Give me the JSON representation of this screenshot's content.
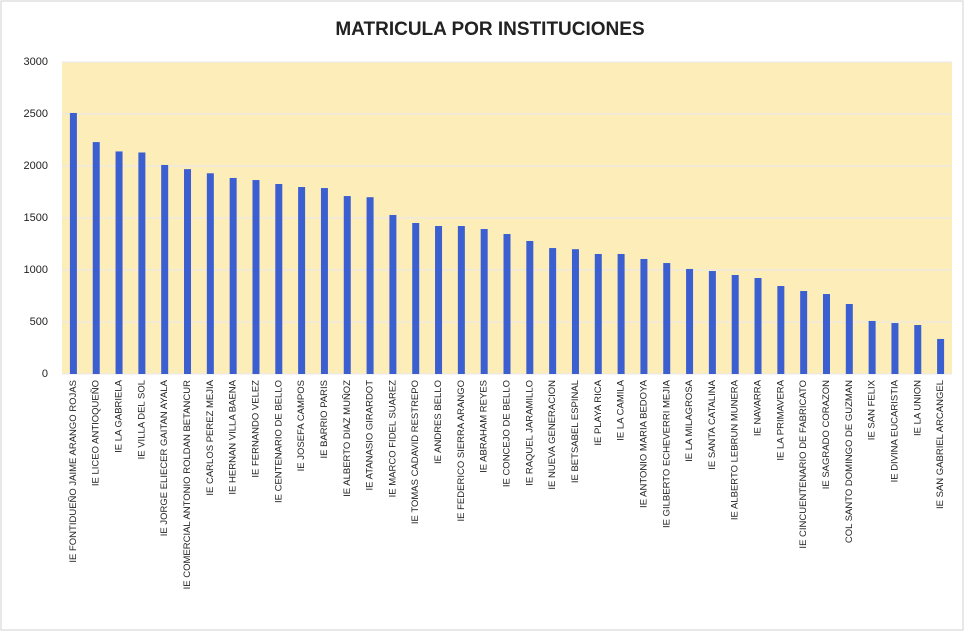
{
  "chart_data": {
    "type": "bar",
    "title": "MATRICULA POR INSTITUCIONES",
    "categories": [
      "IE FONTIDUEÑO JAIME ARANGO ROJAS",
      "IE LICEO ANTIOQUEÑO",
      "IE LA GABRIELA",
      "IE VILLA DEL SOL",
      "IE JORGE ELIECER GAITAN AYALA",
      "IE COMERCIAL ANTONIO ROLDAN BETANCUR",
      "IE CARLOS PEREZ MEJIA",
      "IE HERNAN VILLA BAENA",
      "IE FERNANDO VELEZ",
      "IE CENTENARIO DE BELLO",
      "IE JOSEFA CAMPOS",
      "IE BARRIO PARIS",
      "IE ALBERTO DIAZ MUÑOZ",
      "IE ATANASIO GIRARDOT",
      "IE MARCO FIDEL SUAREZ",
      "IE TOMAS CADAVID RESTREPO",
      "IE ANDRES BELLO",
      "IE FEDERICO SIERRA ARANGO",
      "IE ABRAHAM REYES",
      "IE CONCEJO DE BELLO",
      "IE RAQUEL JARAMILLO",
      "IE NUEVA GENERACION",
      "IE BETSABEL ESPINAL",
      "IE PLAYA RICA",
      "IE LA CAMILA",
      "IE ANTONIO MARIA BEDOYA",
      "IE GILBERTO ECHEVERRI MEJIA",
      "IE LA MILAGROSA",
      "IE SANTA CATALINA",
      "IE ALBERTO LEBRUN MUNERA",
      "IE NAVARRA",
      "IE LA PRIMAVERA",
      "IE CINCUENTENARIO DE FABRICATO",
      "IE SAGRADO CORAZON",
      "COL SANTO DOMINGO DE GUZMAN",
      "IE SAN FELIX",
      "IE DIVINA EUCARISTIA",
      "IE LA UNION",
      "IE SAN GABRIEL ARCANGEL"
    ],
    "values": [
      2510,
      2230,
      2140,
      2130,
      2010,
      1970,
      1930,
      1885,
      1865,
      1827,
      1798,
      1788,
      1711,
      1700,
      1529,
      1452,
      1423,
      1423,
      1394,
      1346,
      1279,
      1211,
      1200,
      1154,
      1154,
      1106,
      1067,
      1010,
      990,
      952,
      923,
      846,
      798,
      769,
      673,
      510,
      490,
      471,
      337
    ],
    "color": "#3b5fd0",
    "ylim": [
      0,
      3000
    ],
    "yticks": [
      0,
      500,
      1000,
      1500,
      2000,
      2500,
      3000
    ],
    "grid": true
  }
}
